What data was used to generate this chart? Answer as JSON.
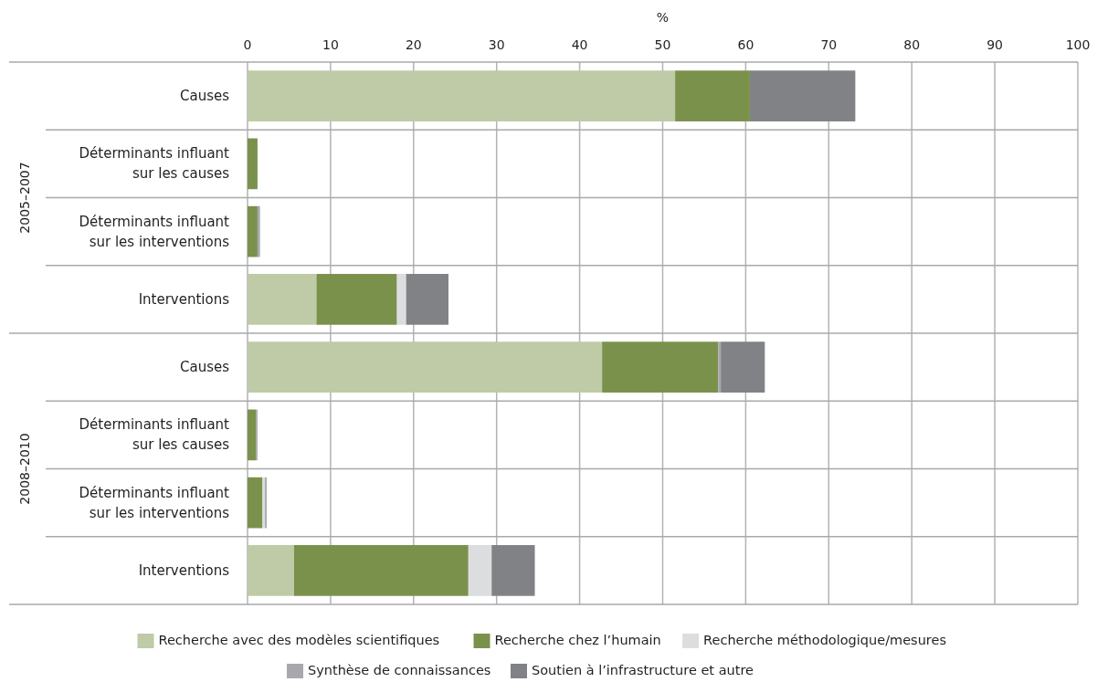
{
  "chart_data": {
    "type": "bar",
    "orientation": "horizontal",
    "stacked": true,
    "xlabel": "%",
    "categories": [
      "Causes",
      "Déterminants influant sur les causes",
      "Déterminants influant sur les interventions",
      "Interventions",
      "Causes",
      "Déterminants influant sur les causes",
      "Déterminants influant sur les interventions",
      "Interventions"
    ],
    "series": [
      {
        "name": "Recherche avec des modèles scientifiques",
        "color": "#bfcaa6",
        "values": [
          51.5,
          0,
          0,
          8.3,
          42.7,
          0,
          0,
          5.6
        ]
      },
      {
        "name": "Recherche chez l’humain",
        "color": "#7a914c",
        "values": [
          9.0,
          1.2,
          1.2,
          9.7,
          14.0,
          1.0,
          1.8,
          21.0
        ]
      },
      {
        "name": "Recherche méthodologique/mesures",
        "color": "#dcdddf",
        "values": [
          0,
          0,
          null,
          1.1,
          0,
          0,
          0.3,
          2.8
        ]
      },
      {
        "name": "Synthèse de connaissances",
        "color": "#a7a8ad",
        "values": [
          null,
          0,
          0.3,
          0,
          0.3,
          0.2,
          0.2,
          0
        ]
      },
      {
        "name": "Soutien à l’infrastructure et autre",
        "color": "#808285",
        "values": [
          12.7,
          0,
          0,
          5.1,
          5.3,
          0,
          0,
          5.2
        ]
      }
    ],
    "xlim": [
      0,
      100
    ],
    "xticks": [
      0,
      10,
      20,
      30,
      40,
      50,
      60,
      70,
      80,
      90,
      100
    ],
    "grid": "x",
    "legend": "bottom",
    "annotations": [
      "2005–2007",
      "2008–2010"
    ]
  }
}
